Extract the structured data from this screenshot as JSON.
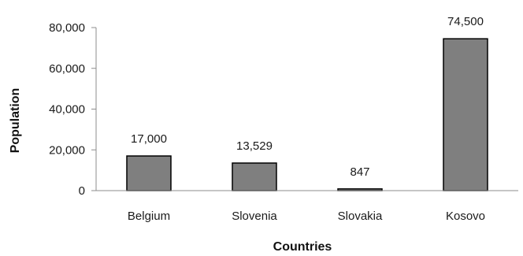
{
  "chart_data": {
    "type": "bar",
    "title": "",
    "xlabel": "Countries",
    "ylabel": "Population",
    "categories": [
      "Belgium",
      "Slovenia",
      "Slovakia",
      "Kosovo"
    ],
    "values": [
      17000,
      13529,
      847,
      74500
    ],
    "data_labels": [
      "17,000",
      "13,529",
      "847",
      "74,500"
    ],
    "ylim": [
      0,
      80000
    ],
    "yticks": [
      0,
      20000,
      40000,
      60000,
      80000
    ],
    "ytick_labels": [
      "0",
      "20,000",
      "40,000",
      "60,000",
      "80,000"
    ],
    "grid": false,
    "legend": "none",
    "bar_color": "#7f7f7f",
    "bar_edge_color": "#000000"
  }
}
